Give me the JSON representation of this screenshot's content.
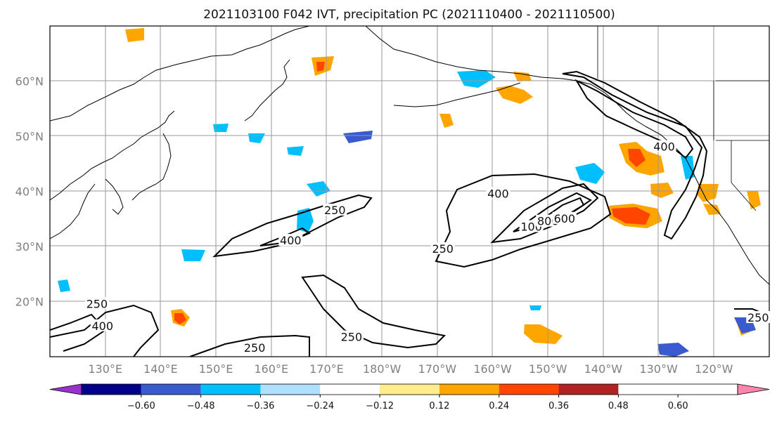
{
  "title": "2021103100 F042 IVT, precipitation PC (2021110400 - 2021110500)",
  "lat_ticks": [
    {
      "value": 60,
      "label": "60°N"
    },
    {
      "value": 50,
      "label": "50°N"
    },
    {
      "value": 40,
      "label": "40°N"
    },
    {
      "value": 30,
      "label": "30°N"
    },
    {
      "value": 20,
      "label": "20°N"
    }
  ],
  "lon_ticks": [
    {
      "value": 130,
      "label": "130°E"
    },
    {
      "value": 140,
      "label": "140°E"
    },
    {
      "value": 150,
      "label": "150°E"
    },
    {
      "value": 160,
      "label": "160°E"
    },
    {
      "value": 170,
      "label": "170°E"
    },
    {
      "value": 180,
      "label": "180°W"
    },
    {
      "value": 190,
      "label": "170°W"
    },
    {
      "value": 200,
      "label": "160°W"
    },
    {
      "value": 210,
      "label": "150°W"
    },
    {
      "value": 220,
      "label": "140°W"
    },
    {
      "value": 230,
      "label": "130°W"
    },
    {
      "value": 240,
      "label": "120°W"
    }
  ],
  "map_extent": {
    "lon_min": 120,
    "lon_max": 250,
    "lat_min": 10,
    "lat_max": 70
  },
  "colorbar": {
    "boundaries": [
      "−0.60",
      "−0.48",
      "−0.36",
      "−0.24",
      "−0.12",
      "0.12",
      "0.24",
      "0.36",
      "0.48",
      "0.60"
    ],
    "colors": [
      "#9932cc",
      "#00008b",
      "#3a5bcf",
      "#00bfff",
      "#b0e0ff",
      "#ffffff",
      "#ffec8b",
      "#ffa500",
      "#ff4500",
      "#b22222",
      "#ff85ad"
    ]
  },
  "contour_labels": [
    {
      "text": "250",
      "lon": 171.5,
      "lat": 36.5
    },
    {
      "text": "400",
      "lon": 163.5,
      "lat": 31.0
    },
    {
      "text": "250",
      "lon": 191.0,
      "lat": 29.5
    },
    {
      "text": "400",
      "lon": 201.0,
      "lat": 39.5
    },
    {
      "text": "100",
      "lon": 207.0,
      "lat": 33.5
    },
    {
      "text": "800",
      "lon": 210.0,
      "lat": 34.5
    },
    {
      "text": "600",
      "lon": 213.0,
      "lat": 35.0
    },
    {
      "text": "400",
      "lon": 231.0,
      "lat": 48.0
    },
    {
      "text": "250",
      "lon": 128.5,
      "lat": 19.5
    },
    {
      "text": "400",
      "lon": 129.5,
      "lat": 15.5
    },
    {
      "text": "250",
      "lon": 157.0,
      "lat": 11.5
    },
    {
      "text": "250",
      "lon": 174.5,
      "lat": 13.5
    },
    {
      "text": "250",
      "lon": 248.0,
      "lat": 17.0
    }
  ]
}
